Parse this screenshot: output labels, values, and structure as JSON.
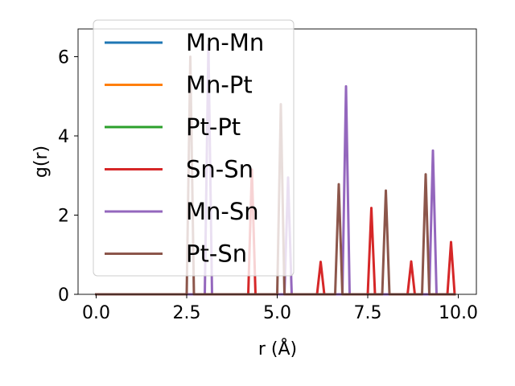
{
  "chart_data": {
    "type": "line",
    "xlabel": "r (Å)",
    "ylabel": "g(r)",
    "xlim": [
      -0.5,
      10.5
    ],
    "ylim": [
      0,
      6.7
    ],
    "x_ticks": [
      0.0,
      2.5,
      5.0,
      7.5,
      10.0
    ],
    "x_tick_labels": [
      "0.0",
      "2.5",
      "5.0",
      "7.5",
      "10.0"
    ],
    "y_ticks": [
      0,
      2,
      4,
      6
    ],
    "y_tick_labels": [
      "0",
      "2",
      "4",
      "6"
    ],
    "grid": false,
    "legend_position": "upper-left",
    "series": [
      {
        "name": "Mn-Mn",
        "color": "#1f77b4",
        "x": [
          0.0,
          9.9
        ],
        "y": [
          0,
          0
        ]
      },
      {
        "name": "Mn-Pt",
        "color": "#ff7f0e",
        "x": [
          0.0,
          9.9
        ],
        "y": [
          0,
          0
        ]
      },
      {
        "name": "Pt-Pt",
        "color": "#2ca02c",
        "x": [
          0.0,
          9.9
        ],
        "y": [
          0,
          0
        ]
      },
      {
        "name": "Sn-Sn",
        "color": "#d62728",
        "x": [
          0.0,
          4.2,
          4.3,
          4.4,
          6.1,
          6.2,
          6.3,
          7.5,
          7.6,
          7.7,
          8.6,
          8.7,
          8.8,
          9.7,
          9.8,
          9.9
        ],
        "y": [
          0,
          0,
          3.15,
          0,
          0,
          0.82,
          0,
          0,
          2.18,
          0,
          0,
          0.83,
          0,
          0,
          1.32,
          0
        ]
      },
      {
        "name": "Mn-Sn",
        "color": "#9467bd",
        "x": [
          0.0,
          3.0,
          3.1,
          3.2,
          5.2,
          5.3,
          5.4,
          6.8,
          6.9,
          7.0,
          9.2,
          9.3,
          9.4,
          9.9
        ],
        "y": [
          0,
          0,
          6.3,
          0,
          0,
          2.95,
          0,
          0,
          5.25,
          0,
          0,
          3.63,
          0,
          0
        ]
      },
      {
        "name": "Pt-Sn",
        "color": "#8c564b",
        "x": [
          0.0,
          2.5,
          2.6,
          2.7,
          5.0,
          5.1,
          5.2,
          6.6,
          6.7,
          6.8,
          7.9,
          8.0,
          8.1,
          9.0,
          9.1,
          9.2,
          9.9
        ],
        "y": [
          0,
          0,
          6.0,
          0,
          0,
          4.8,
          0,
          0,
          2.78,
          0,
          0,
          2.62,
          0,
          0,
          3.03,
          0,
          0
        ]
      }
    ]
  }
}
